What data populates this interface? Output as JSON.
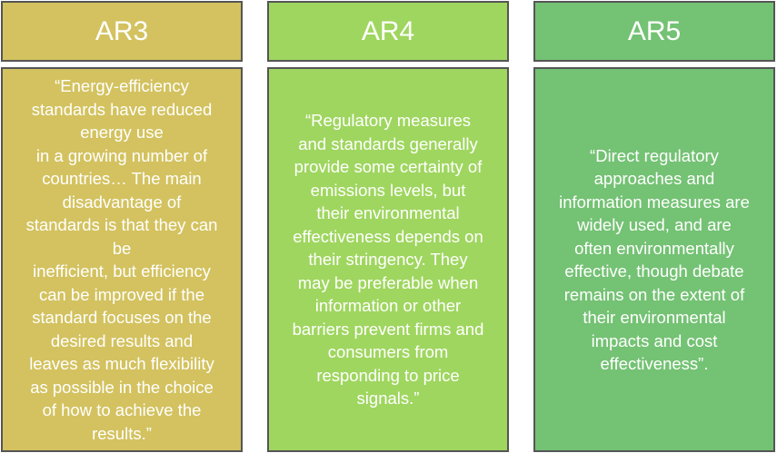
{
  "colors": {
    "ar3": "#d3c25f",
    "ar4": "#9fd65f",
    "ar5": "#74c274",
    "border": "#555555",
    "text": "#ffffff"
  },
  "columns": [
    {
      "title": "AR3",
      "quote": "“Energy-efficiency\nstandards have reduced\nenergy use\nin a growing number of\ncountries… The main\ndisadvantage of\nstandards is that they can\nbe\ninefficient, but efficiency\ncan be improved if the\nstandard focuses on the\ndesired results and\nleaves as much flexibility\nas possible in the choice\nof how to achieve the\nresults.”"
    },
    {
      "title": "AR4",
      "quote": "“Regulatory measures\nand standards generally\nprovide some certainty of\nemissions levels, but\ntheir environmental\neffectiveness depends on\ntheir stringency. They\nmay be preferable when\ninformation or other\nbarriers prevent firms and\nconsumers from\nresponding to price\nsignals.”"
    },
    {
      "title": "AR5",
      "quote": "“Direct regulatory\napproaches and\ninformation measures are\nwidely used, and are\noften environmentally\neffective, though debate\nremains on the extent of\ntheir environmental\nimpacts and cost\neffectiveness”."
    }
  ]
}
